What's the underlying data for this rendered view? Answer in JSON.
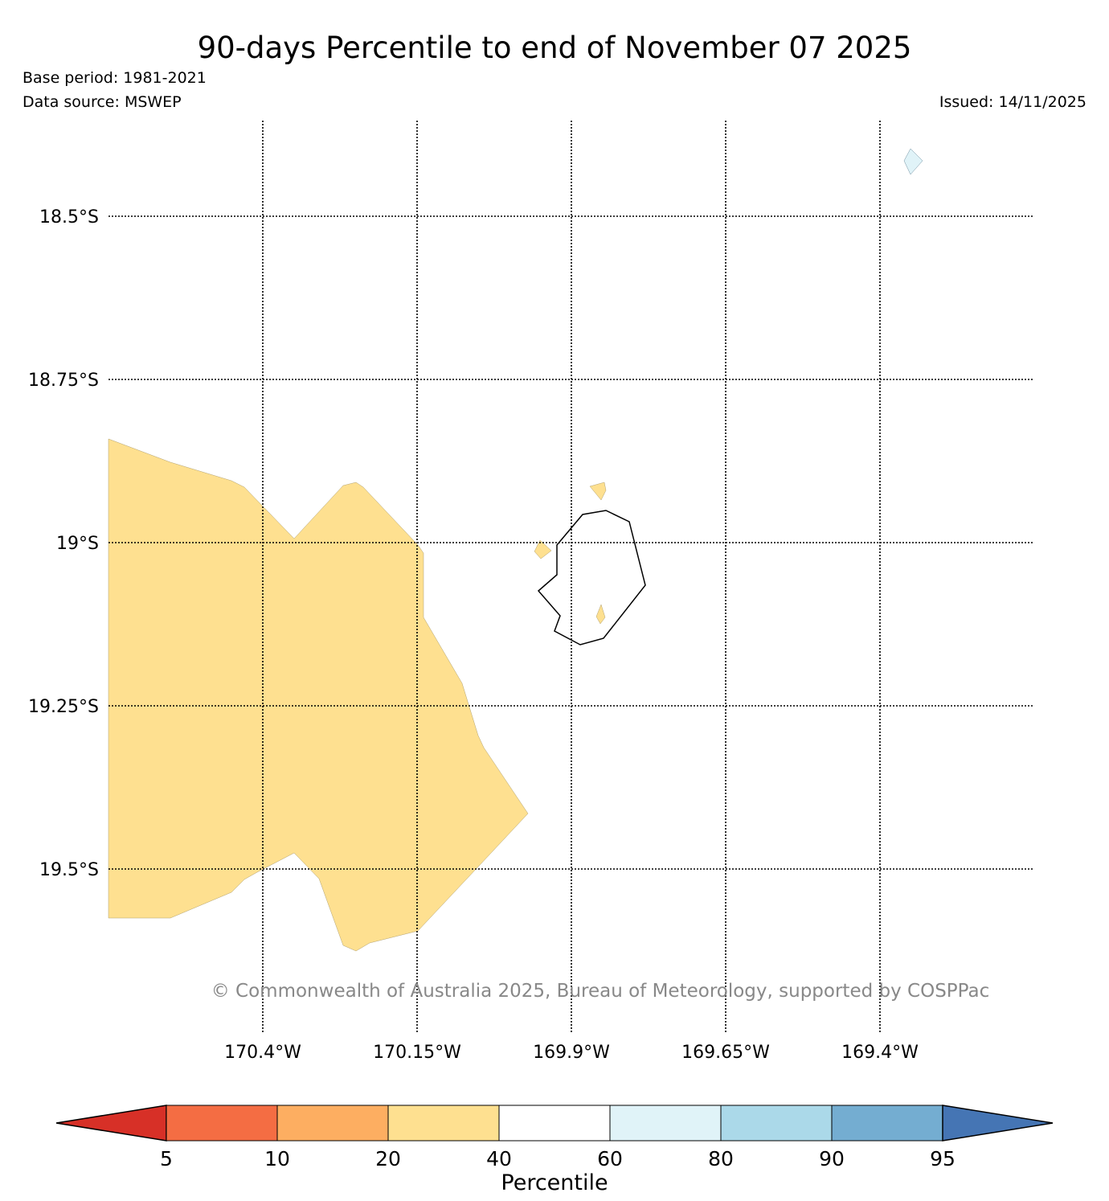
{
  "title": "90-days Percentile to end of November 07 2025",
  "base_period": "Base period: 1981-2021",
  "data_source": "Data source: MSWEP",
  "issued": "Issued: 14/11/2025",
  "copyright": "© Commonwealth of Australia 2025, Bureau of Meteorology, supported by COSPPac",
  "map": {
    "lat_labels": [
      "18.5°S",
      "18.75°S",
      "19°S",
      "19.25°S",
      "19.5°S"
    ],
    "lon_labels": [
      "170.4°W",
      "170.15°W",
      "169.9°W",
      "169.65°W",
      "169.4°W"
    ]
  },
  "colorbar": {
    "title": "Percentile",
    "ticks": [
      "5",
      "10",
      "20",
      "40",
      "60",
      "80",
      "90",
      "95"
    ],
    "colors": [
      "#d73027",
      "#f46d43",
      "#fdae61",
      "#fee090",
      "#ffffff",
      "#e0f3f8",
      "#abd9e9",
      "#74add1",
      "#4575b4"
    ],
    "bins": [
      "<5",
      "5-10",
      "10-20",
      "20-40",
      "40-60",
      "60-80",
      "80-90",
      "90-95",
      ">95"
    ]
  },
  "regions": [
    {
      "name": "large western area",
      "category": "20-40",
      "color": "#fee090"
    },
    {
      "name": "small northeast island",
      "category": "60-80",
      "color": "#e0f3f8"
    }
  ]
}
